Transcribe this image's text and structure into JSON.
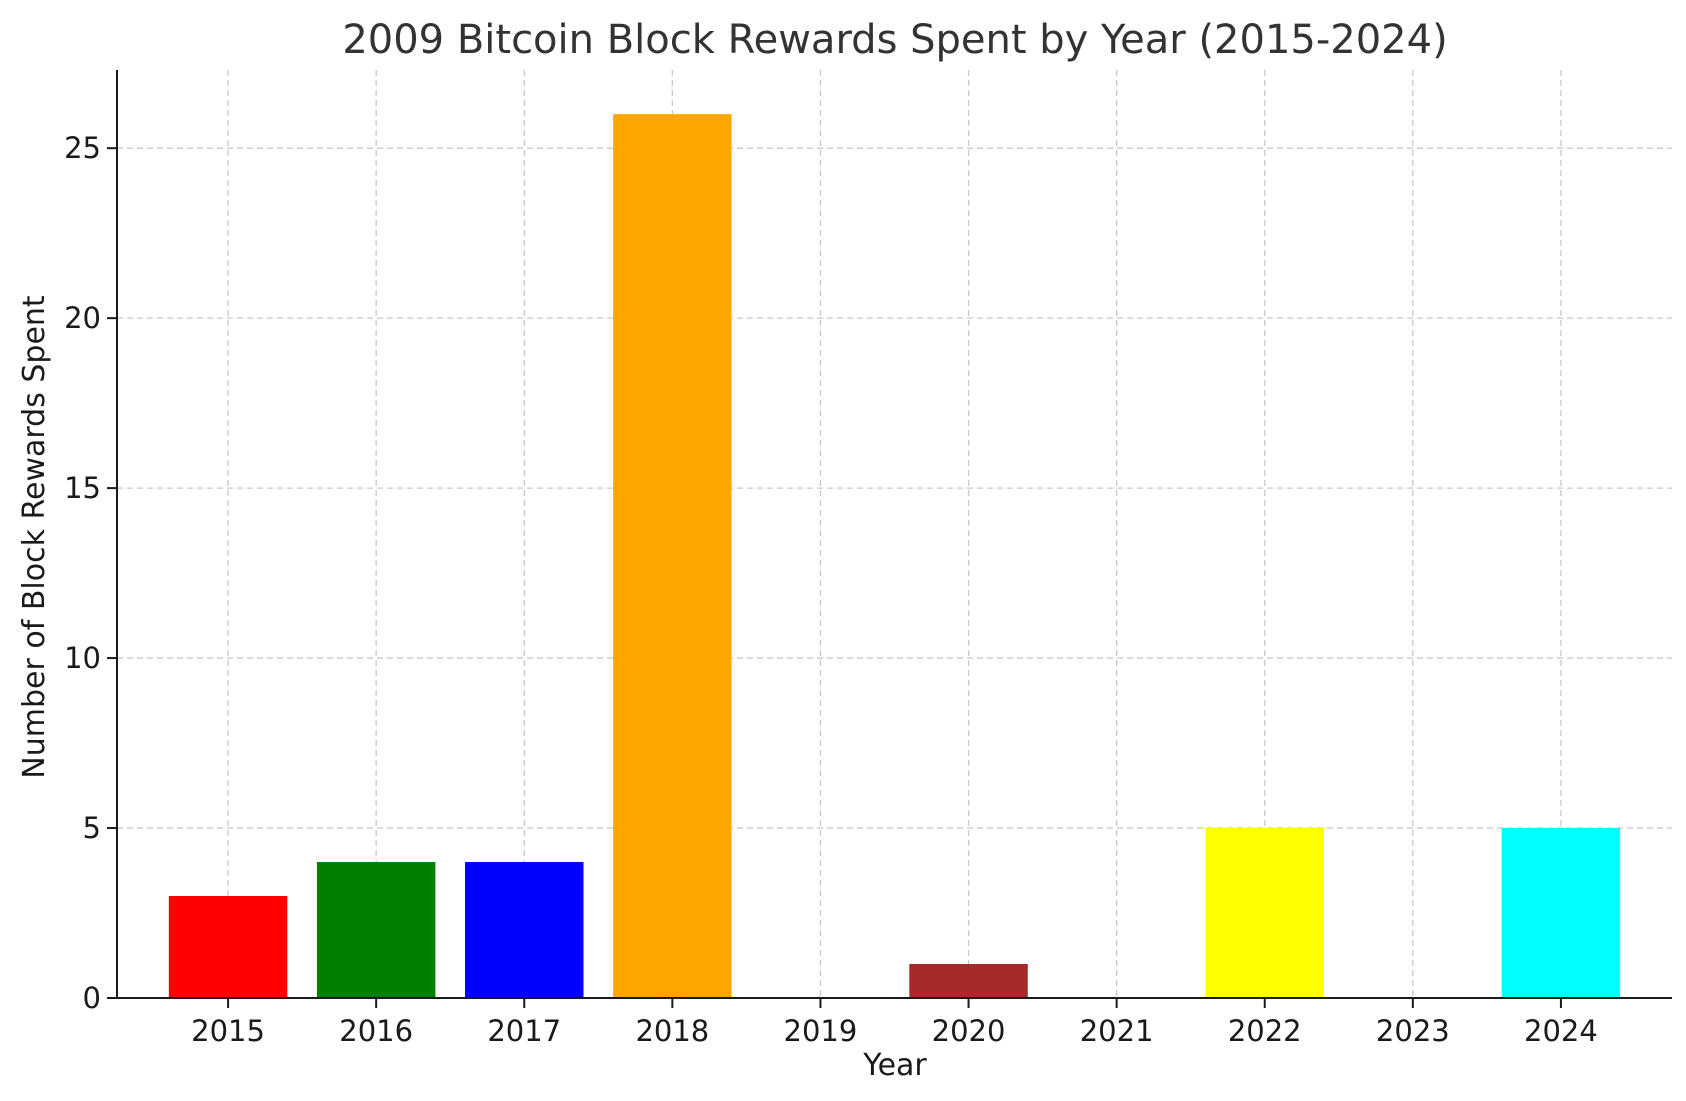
{
  "chart_data": {
    "type": "bar",
    "title": "2009 Bitcoin Block Rewards Spent by Year (2015-2024)",
    "xlabel": "Year",
    "ylabel": "Number of Block Rewards Spent",
    "categories": [
      "2015",
      "2016",
      "2017",
      "2018",
      "2019",
      "2020",
      "2021",
      "2022",
      "2023",
      "2024"
    ],
    "values": [
      3,
      4,
      4,
      26,
      0,
      1,
      0,
      5,
      0,
      5
    ],
    "colors": [
      "#ff0000",
      "#008000",
      "#0000ff",
      "#ffa500",
      "#800080",
      "#a52a2a",
      "#ffc0cb",
      "#ffff00",
      "#808080",
      "#00ffff"
    ],
    "ylim": [
      0,
      27.3
    ],
    "yticks": [
      0,
      5,
      10,
      15,
      20,
      25
    ],
    "grid": true,
    "legend": "none"
  }
}
